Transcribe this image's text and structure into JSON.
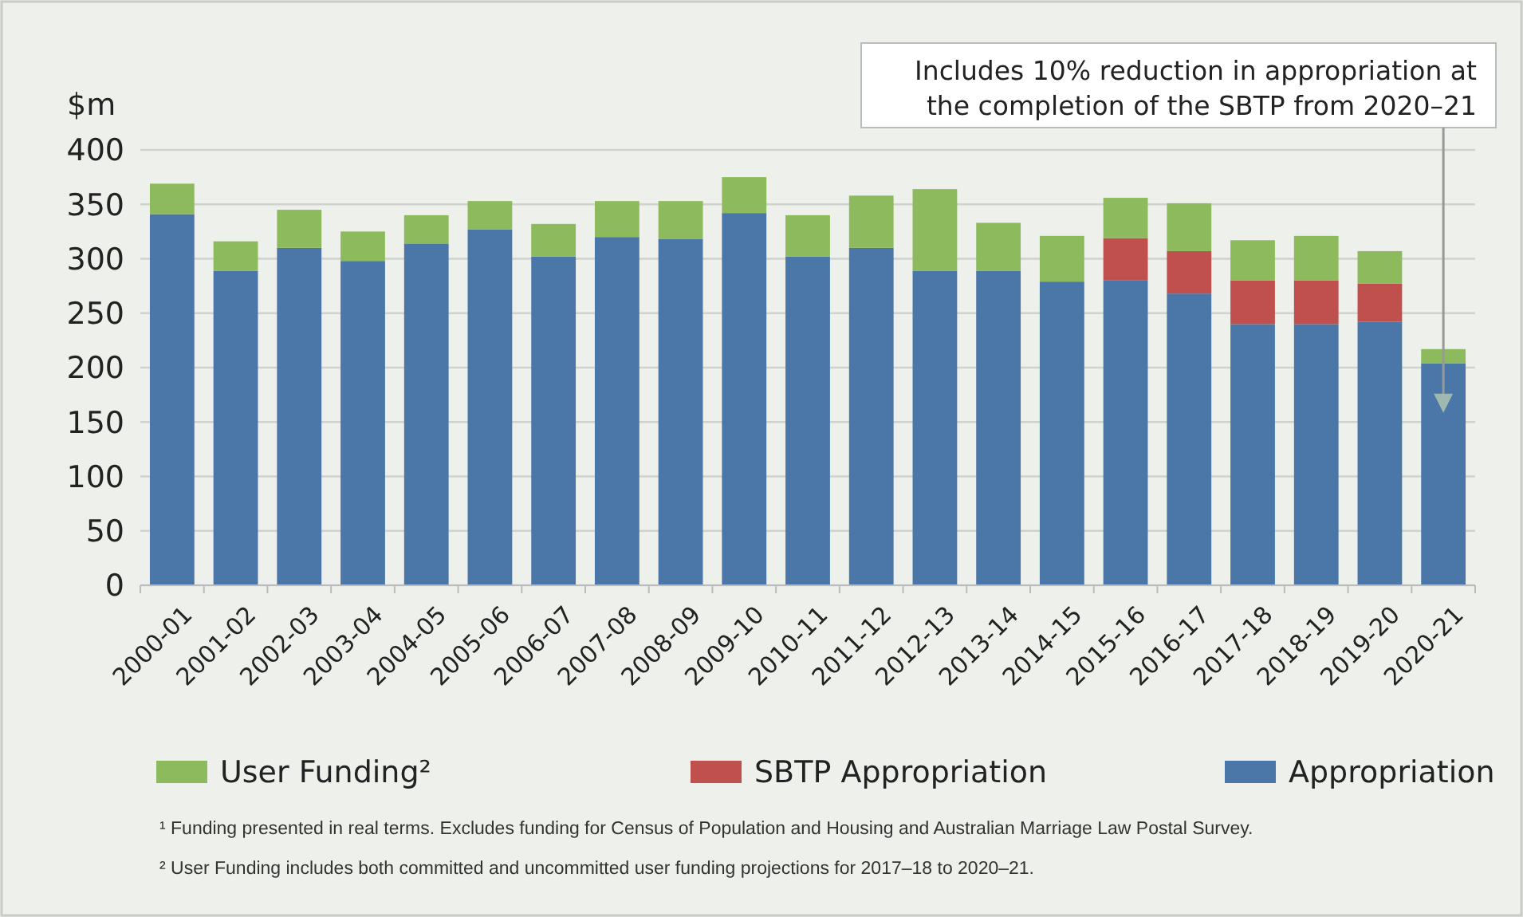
{
  "chart_data": {
    "type": "bar",
    "stacked": true,
    "ylabel": "$m",
    "categories": [
      "2000-01",
      "2001-02",
      "2002-03",
      "2003-04",
      "2004-05",
      "2005-06",
      "2006-07",
      "2007-08",
      "2008-09",
      "2009-10",
      "2010-11",
      "2011-12",
      "2012-13",
      "2013-14",
      "2014-15",
      "2015-16",
      "2016-17",
      "2017-18",
      "2018-19",
      "2019-20",
      "2020-21"
    ],
    "series": [
      {
        "name": "Appropriation",
        "color": "#4a76a8",
        "values": [
          341,
          289,
          310,
          298,
          314,
          327,
          302,
          320,
          318,
          342,
          302,
          310,
          289,
          289,
          279,
          280,
          268,
          240,
          240,
          242,
          204
        ]
      },
      {
        "name": "SBTP Appropriation",
        "color": "#c0504d",
        "values": [
          null,
          null,
          null,
          null,
          null,
          null,
          null,
          null,
          null,
          null,
          null,
          null,
          null,
          null,
          null,
          39,
          39,
          40,
          40,
          35,
          null
        ]
      },
      {
        "name": "User Funding²",
        "color": "#8dba5c",
        "values": [
          28,
          27,
          35,
          27,
          26,
          26,
          30,
          33,
          35,
          33,
          38,
          48,
          75,
          44,
          42,
          37,
          44,
          37,
          41,
          30,
          13
        ]
      }
    ],
    "ylim": [
      0,
      400
    ],
    "yticks": [
      0,
      50,
      100,
      150,
      200,
      250,
      300,
      350,
      400
    ],
    "grid": "y",
    "legend": "bottom",
    "annotations": [
      "Includes 10% reduction in appropriation at the completion of the SBTP from 2020–21",
      "¹ Funding presented in real terms. Excludes funding for Census of Population and Housing and Australian Marriage Law Postal Survey.",
      "² User Funding includes both committed and uncommitted user funding projections for 2017–18 to 2020–21."
    ]
  }
}
